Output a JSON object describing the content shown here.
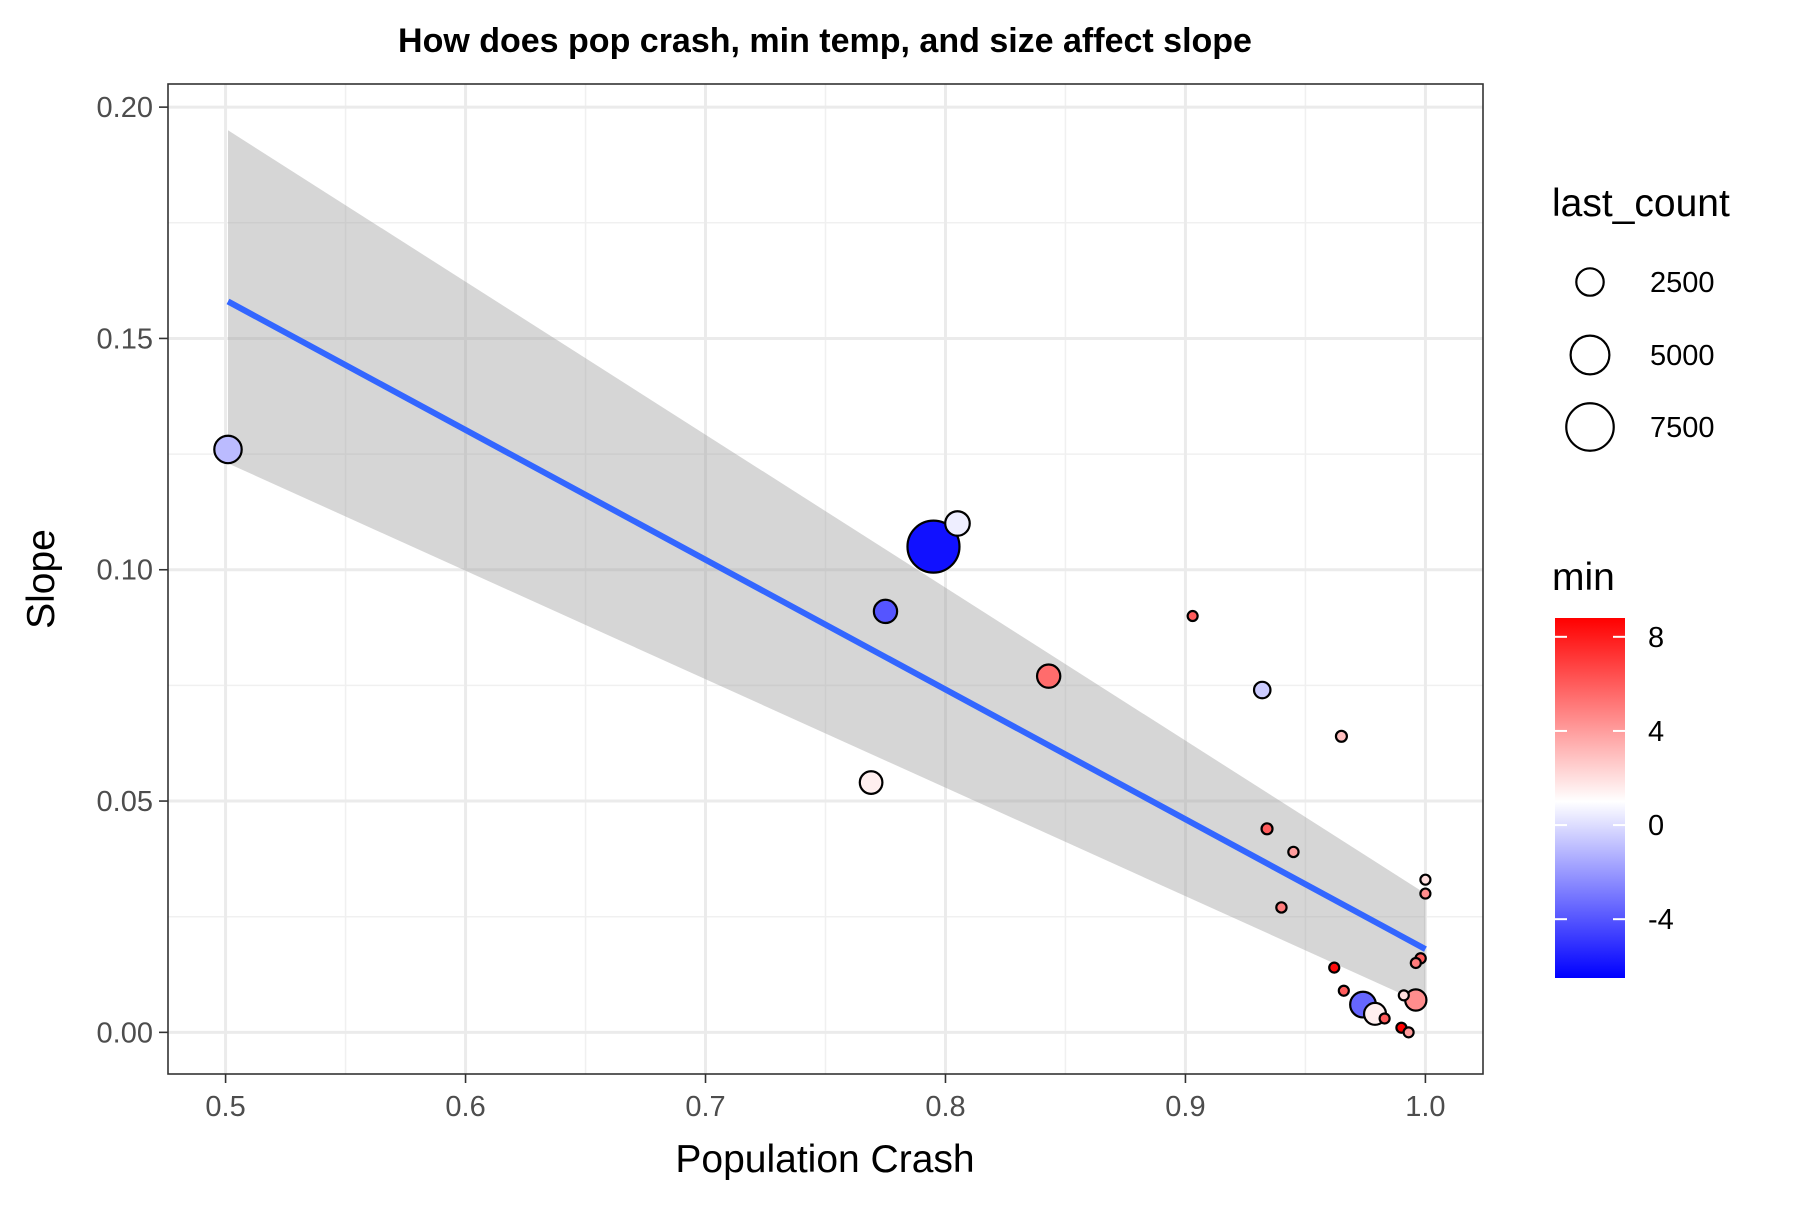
{
  "chart_data": {
    "type": "scatter",
    "title": "How does pop crash, min temp, and size affect slope",
    "xlabel": "Population Crash",
    "ylabel": "Slope",
    "xlim": [
      0.476,
      1.024
    ],
    "ylim": [
      -0.009,
      0.205
    ],
    "x_ticks": [
      0.5,
      0.6,
      0.7,
      0.8,
      0.9,
      1.0
    ],
    "x_tick_labels": [
      "0.5",
      "0.6",
      "0.7",
      "0.8",
      "0.9",
      "1.0"
    ],
    "y_ticks": [
      0.0,
      0.05,
      0.1,
      0.15,
      0.2
    ],
    "y_tick_labels": [
      "0.00",
      "0.05",
      "0.10",
      "0.15",
      "0.20"
    ],
    "grid": true,
    "points": [
      {
        "x": 0.501,
        "y": 0.126,
        "min": -1.0,
        "last_count": 2500
      },
      {
        "x": 0.795,
        "y": 0.105,
        "min": -6.0,
        "last_count": 9000
      },
      {
        "x": 0.805,
        "y": 0.11,
        "min": 0.5,
        "last_count": 2000
      },
      {
        "x": 0.775,
        "y": 0.091,
        "min": -4.0,
        "last_count": 1800
      },
      {
        "x": 0.843,
        "y": 0.077,
        "min": 5.5,
        "last_count": 1800
      },
      {
        "x": 0.769,
        "y": 0.054,
        "min": 1.5,
        "last_count": 1700
      },
      {
        "x": 0.903,
        "y": 0.09,
        "min": 6.0,
        "last_count": 300
      },
      {
        "x": 0.932,
        "y": 0.074,
        "min": -0.5,
        "last_count": 900
      },
      {
        "x": 0.965,
        "y": 0.064,
        "min": 3.0,
        "last_count": 400
      },
      {
        "x": 0.934,
        "y": 0.044,
        "min": 6.0,
        "last_count": 400
      },
      {
        "x": 0.945,
        "y": 0.039,
        "min": 4.0,
        "last_count": 350
      },
      {
        "x": 0.94,
        "y": 0.027,
        "min": 5.0,
        "last_count": 350
      },
      {
        "x": 1.0,
        "y": 0.033,
        "min": 2.0,
        "last_count": 200
      },
      {
        "x": 1.0,
        "y": 0.03,
        "min": 4.5,
        "last_count": 200
      },
      {
        "x": 0.998,
        "y": 0.016,
        "min": 6.0,
        "last_count": 350
      },
      {
        "x": 0.996,
        "y": 0.015,
        "min": 5.0,
        "last_count": 300
      },
      {
        "x": 0.962,
        "y": 0.014,
        "min": 8.5,
        "last_count": 300
      },
      {
        "x": 0.966,
        "y": 0.009,
        "min": 6.0,
        "last_count": 250
      },
      {
        "x": 0.974,
        "y": 0.006,
        "min": -3.5,
        "last_count": 2200
      },
      {
        "x": 0.979,
        "y": 0.004,
        "min": 1.5,
        "last_count": 1600
      },
      {
        "x": 0.983,
        "y": 0.003,
        "min": 6.0,
        "last_count": 200
      },
      {
        "x": 0.99,
        "y": 0.001,
        "min": 9.0,
        "last_count": 300
      },
      {
        "x": 0.991,
        "y": 0.008,
        "min": 2.0,
        "last_count": 200
      },
      {
        "x": 0.993,
        "y": 0.0,
        "min": 4.0,
        "last_count": 150
      },
      {
        "x": 0.996,
        "y": 0.007,
        "min": 4.5,
        "last_count": 1500
      }
    ],
    "trend_line": {
      "x": [
        0.501,
        1.0
      ],
      "y": [
        0.158,
        0.018
      ],
      "color": "#3366FF"
    },
    "confidence_band": {
      "x": [
        0.501,
        1.0
      ],
      "upper": [
        0.195,
        0.03
      ],
      "lower": [
        0.123,
        0.006
      ],
      "color": "#999999"
    },
    "size_legend": {
      "title": "last_count",
      "entries": [
        {
          "label": "2500",
          "value": 2500
        },
        {
          "label": "5000",
          "value": 5000
        },
        {
          "label": "7500",
          "value": 7500
        }
      ]
    },
    "color_legend": {
      "title": "min",
      "ticks": [
        {
          "label": "8",
          "value": 8
        },
        {
          "label": "4",
          "value": 4
        },
        {
          "label": "0",
          "value": 0
        },
        {
          "label": "-4",
          "value": -4
        }
      ],
      "range": [
        -6.5,
        8.8
      ],
      "low_color": "#0000FF",
      "mid_color": "#FFFFFF",
      "high_color": "#FF0000",
      "midpoint": 1.0
    }
  }
}
